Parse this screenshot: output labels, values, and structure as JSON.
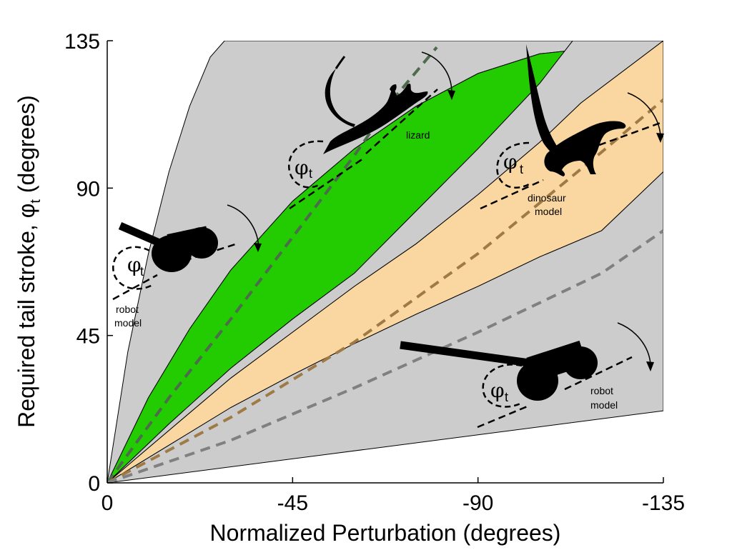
{
  "chart_data": {
    "type": "area",
    "xlabel": "Normalized Perturbation (degrees)",
    "ylabel": "Required tail stroke, φ",
    "ylabel_sub": "t",
    "ylabel_suffix": " (degrees)",
    "xlim": [
      0,
      -135
    ],
    "ylim": [
      0,
      135
    ],
    "x_ticks": [
      0,
      -45,
      -90,
      -135
    ],
    "x_tick_labels": [
      "0",
      "-45",
      "-90",
      "-135"
    ],
    "y_ticks": [
      0,
      45,
      90,
      135
    ],
    "y_tick_labels": [
      "0",
      "45",
      "90",
      "135"
    ],
    "grid": false,
    "colors": {
      "gray_band": "#cccccc",
      "green_band": "#22cc00",
      "orange_band": "#fad7a0",
      "lizard_dash": "#4d6b4d",
      "dinosaur_dash": "#a07a45",
      "robot_dash": "#808080"
    },
    "bands": [
      {
        "color": "gray_band",
        "upper": {
          "x": [
            0,
            -5,
            -10,
            -15,
            -20,
            -25,
            -28.5
          ],
          "y": [
            0,
            40,
            70,
            95,
            115,
            130,
            135
          ]
        },
        "lower": {
          "x": [
            0,
            -10,
            -20,
            -30,
            -45,
            -60,
            -75,
            -90,
            -105,
            -135
          ],
          "y": [
            0,
            26,
            47,
            65,
            86,
            102,
            115,
            125,
            131,
            135
          ]
        }
      },
      {
        "color": "green_band",
        "upper": {
          "x": [
            0,
            -10,
            -20,
            -30,
            -45,
            -60,
            -75,
            -90,
            -105,
            -135
          ],
          "y": [
            0,
            26,
            47,
            65,
            86,
            102,
            115,
            125,
            131,
            135
          ]
        },
        "lower": {
          "x": [
            0,
            -15,
            -30,
            -45,
            -60,
            -75,
            -90,
            -105,
            -113
          ],
          "y": [
            0,
            18,
            35,
            50,
            64,
            83,
            102,
            122,
            135
          ]
        }
      },
      {
        "color": "gray_band",
        "upper": {
          "x": [
            0,
            -15,
            -30,
            -45,
            -60,
            -75,
            -90,
            -105,
            -113
          ],
          "y": [
            0,
            18,
            35,
            50,
            64,
            83,
            102,
            122,
            135
          ]
        },
        "lower": {
          "x": [
            0,
            -15,
            -30,
            -45,
            -60,
            -75,
            -90,
            -105,
            -115,
            -135
          ],
          "y": [
            0,
            16,
            32,
            46,
            60,
            73,
            88,
            104,
            116,
            135
          ]
        }
      },
      {
        "color": "orange_band",
        "upper": {
          "x": [
            0,
            -15,
            -30,
            -45,
            -60,
            -75,
            -90,
            -105,
            -115,
            -135
          ],
          "y": [
            0,
            16,
            32,
            46,
            60,
            73,
            88,
            104,
            116,
            135
          ]
        },
        "lower": {
          "x": [
            0,
            -15,
            -30,
            -45,
            -60,
            -75,
            -90,
            -105,
            -120,
            -135
          ],
          "y": [
            0,
            11.5,
            23,
            33,
            42.5,
            51.5,
            60,
            69,
            77,
            95
          ]
        }
      },
      {
        "color": "gray_band",
        "upper": {
          "x": [
            0,
            -15,
            -30,
            -45,
            -60,
            -75,
            -90,
            -105,
            -120,
            -135
          ],
          "y": [
            0,
            11.5,
            23,
            33,
            42.5,
            51.5,
            60,
            69,
            77,
            95
          ]
        },
        "lower": {
          "x": [
            0,
            -135
          ],
          "y": [
            0,
            22
          ]
        }
      }
    ],
    "series": [
      {
        "style": "lizard_dash",
        "x": [
          0,
          -15,
          -30,
          -45,
          -60,
          -70,
          -80
        ],
        "y": [
          0,
          26,
          50,
          75,
          100,
          118,
          133
        ]
      },
      {
        "style": "dinosaur_dash",
        "x": [
          0,
          -30,
          -60,
          -90,
          -120,
          -135
        ],
        "y": [
          0,
          20,
          43,
          70,
          101,
          117
        ]
      },
      {
        "style": "robot_dash",
        "x": [
          0,
          -30,
          -60,
          -90,
          -120,
          -135
        ],
        "y": [
          0,
          13,
          29,
          46,
          64,
          77
        ]
      }
    ],
    "annotations": [
      {
        "id": "lizard",
        "lines": [
          "lizard"
        ]
      },
      {
        "id": "dinosaur",
        "lines": [
          "dinosaur",
          "model"
        ]
      },
      {
        "id": "robot_upper",
        "lines": [
          "robot",
          "model"
        ]
      },
      {
        "id": "robot_lower",
        "lines": [
          "robot",
          "model"
        ]
      }
    ],
    "phi_symbol": "φ",
    "phi_subscript": "t"
  }
}
